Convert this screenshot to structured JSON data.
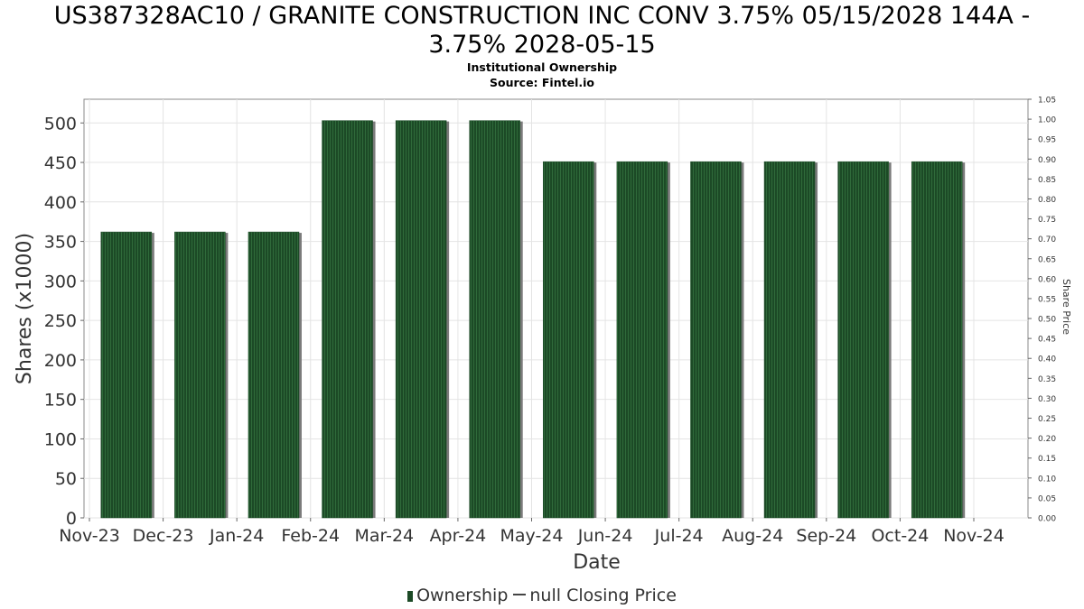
{
  "header": {
    "title_line1": "US387328AC10 / GRANITE CONSTRUCTION INC CONV 3.75% 05/15/2028 144A -",
    "title_line2": "3.75% 2028-05-15",
    "subtitle": "Institutional Ownership",
    "source": "Source: Fintel.io"
  },
  "legend": {
    "ownership": "Ownership",
    "price": "null Closing Price"
  },
  "colors": {
    "bar": "#1c4a26",
    "bar_stripe": "#2f6a3a",
    "bar_shadow": "#7a7a7a",
    "grid": "#e4e4e4"
  },
  "chart_data": {
    "type": "bar",
    "xlabel": "Date",
    "ylabel": "Shares (x1000)",
    "y2label": "Share Price",
    "ylim": [
      0,
      530
    ],
    "y2lim": [
      0,
      1.05
    ],
    "yticks": [
      0,
      50,
      100,
      150,
      200,
      250,
      300,
      350,
      400,
      450,
      500
    ],
    "y2ticks": [
      "0.00",
      "0.05",
      "0.10",
      "0.15",
      "0.20",
      "0.25",
      "0.30",
      "0.35",
      "0.40",
      "0.45",
      "0.50",
      "0.55",
      "0.60",
      "0.65",
      "0.70",
      "0.75",
      "0.80",
      "0.85",
      "0.90",
      "0.95",
      "1.00",
      "1.05"
    ],
    "xticks": [
      "Nov-23",
      "Dec-23",
      "Jan-24",
      "Feb-24",
      "Mar-24",
      "Apr-24",
      "May-24",
      "Jun-24",
      "Jul-24",
      "Aug-24",
      "Sep-24",
      "Oct-24",
      "Nov-24"
    ],
    "grid": true,
    "legend_position": "bottom",
    "series": [
      {
        "name": "Ownership",
        "values": [
          362,
          362,
          362,
          503,
          503,
          503,
          451,
          451,
          451,
          451,
          451,
          451
        ]
      }
    ]
  }
}
